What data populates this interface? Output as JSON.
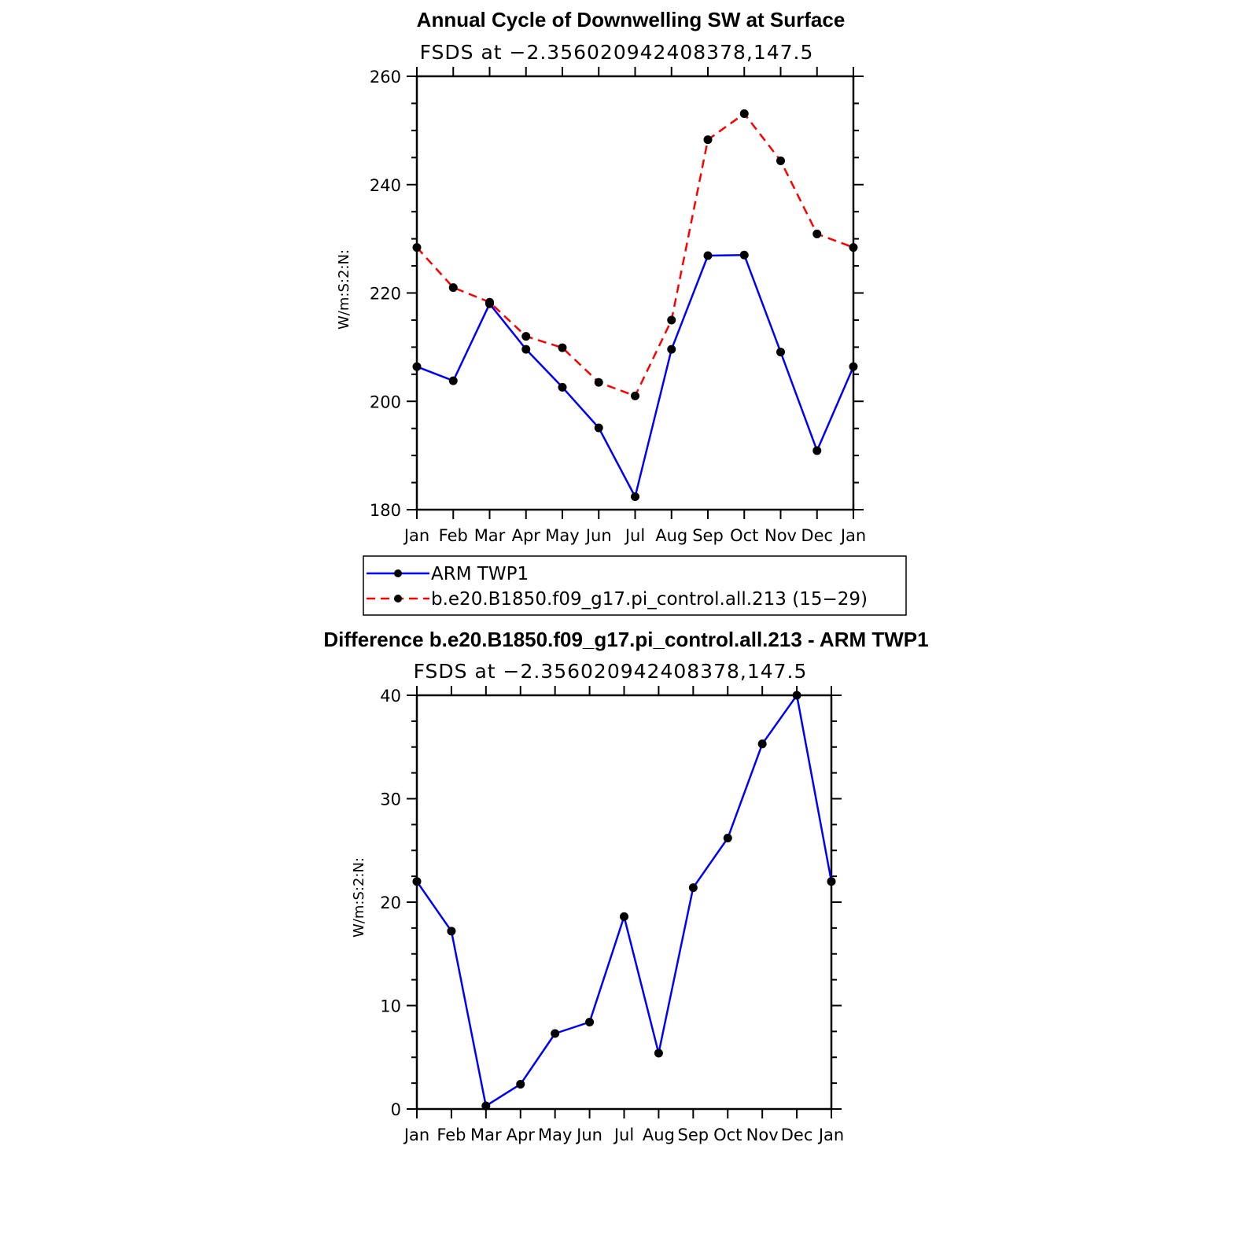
{
  "colors": {
    "obs": "#0000ff",
    "model": "#ff0000",
    "marker": "#000000",
    "axis": "#000000"
  },
  "chart_data": [
    {
      "type": "line",
      "title": "Annual Cycle of Downwelling SW at Surface",
      "subtitle": "FSDS at −2.356020942408378,147.5",
      "ylabel": "W/m:S:2:N:",
      "xlabel": "",
      "categories": [
        "Jan",
        "Feb",
        "Mar",
        "Apr",
        "May",
        "Jun",
        "Jul",
        "Aug",
        "Sep",
        "Oct",
        "Nov",
        "Dec",
        "Jan"
      ],
      "ylim": [
        180,
        260
      ],
      "yticks": [
        "180",
        "200",
        "220",
        "240",
        "260"
      ],
      "series": [
        {
          "name": "ARM TWP1",
          "style": "solid",
          "values": [
            206.4,
            203.8,
            218.0,
            209.6,
            202.6,
            195.1,
            182.4,
            209.6,
            226.9,
            227.0,
            209.1,
            190.9,
            206.4
          ]
        },
        {
          "name": "b.e20.B1850.f09_g17.pi_control.all.213 (15−29)",
          "style": "dashed",
          "values": [
            228.4,
            221.0,
            218.3,
            212.0,
            209.9,
            203.5,
            201.0,
            215.0,
            248.3,
            253.1,
            244.4,
            230.9,
            228.4
          ]
        }
      ]
    },
    {
      "type": "line",
      "title": "Difference b.e20.B1850.f09_g17.pi_control.all.213 - ARM TWP1",
      "subtitle": "FSDS at −2.356020942408378,147.5",
      "ylabel": "W/m:S:2:N:",
      "xlabel": "",
      "categories": [
        "Jan",
        "Feb",
        "Mar",
        "Apr",
        "May",
        "Jun",
        "Jul",
        "Aug",
        "Sep",
        "Oct",
        "Nov",
        "Dec",
        "Jan"
      ],
      "ylim": [
        0,
        40
      ],
      "yticks": [
        "0",
        "10",
        "20",
        "30",
        "40"
      ],
      "series": [
        {
          "style": "solid",
          "values": [
            22.0,
            17.2,
            0.3,
            2.4,
            7.3,
            8.4,
            18.6,
            5.4,
            21.4,
            26.2,
            35.3,
            40.0,
            22.0
          ]
        }
      ]
    }
  ]
}
